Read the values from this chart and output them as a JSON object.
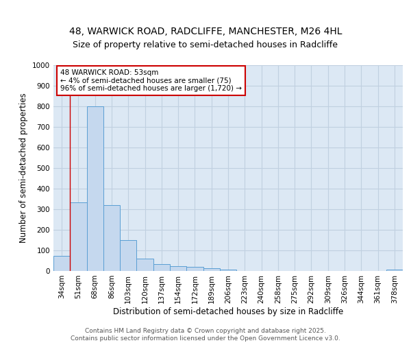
{
  "title_line1": "48, WARWICK ROAD, RADCLIFFE, MANCHESTER, M26 4HL",
  "title_line2": "Size of property relative to semi-detached houses in Radcliffe",
  "xlabel": "Distribution of semi-detached houses by size in Radcliffe",
  "ylabel": "Number of semi-detached properties",
  "categories": [
    "34sqm",
    "51sqm",
    "68sqm",
    "86sqm",
    "103sqm",
    "120sqm",
    "137sqm",
    "154sqm",
    "172sqm",
    "189sqm",
    "206sqm",
    "223sqm",
    "240sqm",
    "258sqm",
    "275sqm",
    "292sqm",
    "309sqm",
    "326sqm",
    "344sqm",
    "361sqm",
    "378sqm"
  ],
  "values": [
    75,
    335,
    800,
    320,
    150,
    60,
    33,
    25,
    20,
    13,
    7,
    0,
    0,
    0,
    0,
    0,
    0,
    0,
    0,
    0,
    8
  ],
  "bar_color": "#c5d8ee",
  "bar_edge_color": "#5a9fd4",
  "vline_color": "#cc0000",
  "annotation_text": "48 WARWICK ROAD: 53sqm\n← 4% of semi-detached houses are smaller (75)\n96% of semi-detached houses are larger (1,720) →",
  "annotation_box_color": "white",
  "annotation_edge_color": "#cc0000",
  "ylim": [
    0,
    1000
  ],
  "yticks": [
    0,
    100,
    200,
    300,
    400,
    500,
    600,
    700,
    800,
    900,
    1000
  ],
  "grid_color": "#c0d0e0",
  "bg_color": "#dce8f4",
  "footer_text": "Contains HM Land Registry data © Crown copyright and database right 2025.\nContains public sector information licensed under the Open Government Licence v3.0.",
  "title_fontsize": 10,
  "subtitle_fontsize": 9,
  "tick_fontsize": 7.5,
  "label_fontsize": 8.5,
  "footer_fontsize": 6.5
}
